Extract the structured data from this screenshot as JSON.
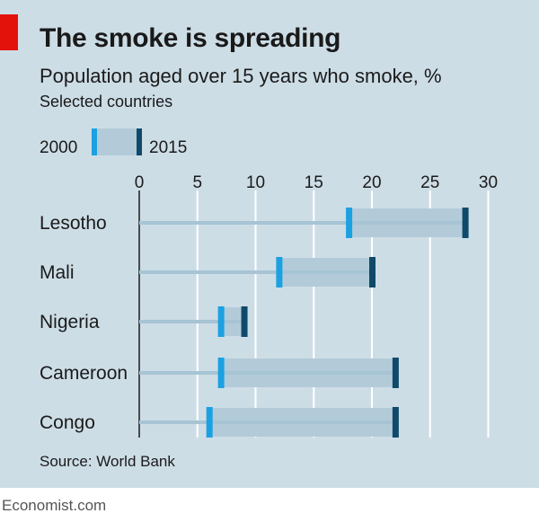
{
  "header": {
    "title": "The smoke is spreading",
    "subtitle": "Population aged over 15 years who smoke, %",
    "note": "Selected countries"
  },
  "legend": {
    "start_label": "2000",
    "end_label": "2015"
  },
  "source": "Source: World Bank",
  "footer": "Economist.com",
  "colors": {
    "background": "#cddde6",
    "brand_red": "#e3120b",
    "start_marker": "#1ba1e2",
    "end_marker": "#0f4a6a",
    "range_fill": "#b3cbd9",
    "guide_line": "#a6c4d4",
    "grid": "#ffffff"
  },
  "chart_data": {
    "type": "dumbbell",
    "title": "The smoke is spreading",
    "subtitle": "Population aged over 15 years who smoke, %",
    "categories": [
      "Lesotho",
      "Mali",
      "Nigeria",
      "Cameroon",
      "Congo"
    ],
    "series": [
      {
        "name": "2000",
        "values": [
          18,
          12,
          7,
          7,
          6
        ]
      },
      {
        "name": "2015",
        "values": [
          28,
          20,
          9,
          22,
          22
        ]
      }
    ],
    "xlim": [
      0,
      30
    ],
    "xticks": [
      0,
      5,
      10,
      15,
      20,
      25,
      30
    ],
    "grid": true,
    "legend": "top-left"
  }
}
